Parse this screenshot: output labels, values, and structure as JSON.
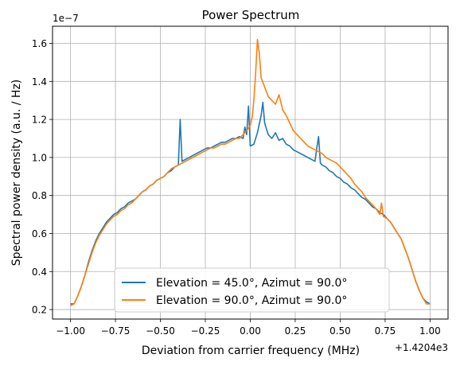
{
  "chart_data": {
    "type": "line",
    "title": "Power Spectrum",
    "xlabel": "Deviation from carrier frequency (MHz)",
    "ylabel": "Spectral power density (a.u. / Hz)",
    "x_offset_label": "+1.4204e3",
    "y_scale_label": "1e−7",
    "xlim": [
      -1.1,
      1.1
    ],
    "ylim": [
      0.15,
      1.69
    ],
    "x_ticks": [
      -1.0,
      -0.75,
      -0.5,
      -0.25,
      0.0,
      0.25,
      0.5,
      0.75,
      1.0
    ],
    "x_tick_labels": [
      "−1.00",
      "−0.75",
      "−0.50",
      "−0.25",
      "0.00",
      "0.25",
      "0.50",
      "0.75",
      "1.00"
    ],
    "y_ticks": [
      0.2,
      0.4,
      0.6,
      0.8,
      1.0,
      1.2,
      1.4,
      1.6
    ],
    "y_tick_labels": [
      "0.2",
      "0.4",
      "0.6",
      "0.8",
      "1.0",
      "1.2",
      "1.4",
      "1.6"
    ],
    "grid": true,
    "legend_position": "lower-center",
    "series": [
      {
        "name": "Elevation = 45.0°, Azimut = 90.0°",
        "color": "#1f77b4",
        "points": [
          [
            -1.0,
            0.23
          ],
          [
            -0.98,
            0.23
          ],
          [
            -0.96,
            0.27
          ],
          [
            -0.94,
            0.32
          ],
          [
            -0.92,
            0.38
          ],
          [
            -0.9,
            0.45
          ],
          [
            -0.88,
            0.51
          ],
          [
            -0.86,
            0.56
          ],
          [
            -0.84,
            0.6
          ],
          [
            -0.82,
            0.63
          ],
          [
            -0.8,
            0.66
          ],
          [
            -0.78,
            0.68
          ],
          [
            -0.76,
            0.7
          ],
          [
            -0.74,
            0.71
          ],
          [
            -0.72,
            0.73
          ],
          [
            -0.7,
            0.74
          ],
          [
            -0.68,
            0.76
          ],
          [
            -0.66,
            0.77
          ],
          [
            -0.64,
            0.78
          ],
          [
            -0.62,
            0.8
          ],
          [
            -0.6,
            0.82
          ],
          [
            -0.58,
            0.83
          ],
          [
            -0.56,
            0.85
          ],
          [
            -0.54,
            0.86
          ],
          [
            -0.52,
            0.88
          ],
          [
            -0.5,
            0.89
          ],
          [
            -0.48,
            0.9
          ],
          [
            -0.46,
            0.92
          ],
          [
            -0.44,
            0.93
          ],
          [
            -0.42,
            0.95
          ],
          [
            -0.4,
            0.96
          ],
          [
            -0.39,
            1.2
          ],
          [
            -0.38,
            0.98
          ],
          [
            -0.36,
            0.99
          ],
          [
            -0.34,
            1.0
          ],
          [
            -0.32,
            1.01
          ],
          [
            -0.3,
            1.02
          ],
          [
            -0.28,
            1.03
          ],
          [
            -0.26,
            1.04
          ],
          [
            -0.24,
            1.05
          ],
          [
            -0.22,
            1.05
          ],
          [
            -0.2,
            1.06
          ],
          [
            -0.18,
            1.07
          ],
          [
            -0.16,
            1.08
          ],
          [
            -0.14,
            1.08
          ],
          [
            -0.12,
            1.09
          ],
          [
            -0.1,
            1.1
          ],
          [
            -0.08,
            1.1
          ],
          [
            -0.06,
            1.11
          ],
          [
            -0.04,
            1.1
          ],
          [
            -0.03,
            1.16
          ],
          [
            -0.02,
            1.12
          ],
          [
            -0.01,
            1.27
          ],
          [
            0.0,
            1.06
          ],
          [
            0.02,
            1.07
          ],
          [
            0.04,
            1.13
          ],
          [
            0.06,
            1.22
          ],
          [
            0.07,
            1.29
          ],
          [
            0.08,
            1.18
          ],
          [
            0.1,
            1.12
          ],
          [
            0.12,
            1.1
          ],
          [
            0.14,
            1.13
          ],
          [
            0.16,
            1.09
          ],
          [
            0.18,
            1.1
          ],
          [
            0.2,
            1.07
          ],
          [
            0.22,
            1.06
          ],
          [
            0.24,
            1.04
          ],
          [
            0.26,
            1.03
          ],
          [
            0.28,
            1.02
          ],
          [
            0.3,
            1.01
          ],
          [
            0.32,
            1.0
          ],
          [
            0.34,
            0.99
          ],
          [
            0.36,
            0.98
          ],
          [
            0.37,
            1.05
          ],
          [
            0.38,
            1.11
          ],
          [
            0.39,
            0.97
          ],
          [
            0.4,
            0.96
          ],
          [
            0.42,
            0.95
          ],
          [
            0.44,
            0.93
          ],
          [
            0.46,
            0.92
          ],
          [
            0.48,
            0.9
          ],
          [
            0.5,
            0.89
          ],
          [
            0.52,
            0.87
          ],
          [
            0.54,
            0.86
          ],
          [
            0.56,
            0.84
          ],
          [
            0.58,
            0.83
          ],
          [
            0.6,
            0.81
          ],
          [
            0.62,
            0.79
          ],
          [
            0.64,
            0.78
          ],
          [
            0.66,
            0.76
          ],
          [
            0.68,
            0.74
          ],
          [
            0.7,
            0.73
          ],
          [
            0.72,
            0.71
          ],
          [
            0.74,
            0.7
          ],
          [
            0.76,
            0.68
          ],
          [
            0.78,
            0.66
          ],
          [
            0.8,
            0.63
          ],
          [
            0.82,
            0.6
          ],
          [
            0.84,
            0.57
          ],
          [
            0.86,
            0.52
          ],
          [
            0.88,
            0.47
          ],
          [
            0.9,
            0.41
          ],
          [
            0.92,
            0.35
          ],
          [
            0.94,
            0.3
          ],
          [
            0.96,
            0.26
          ],
          [
            0.98,
            0.24
          ],
          [
            1.0,
            0.23
          ]
        ]
      },
      {
        "name": "Elevation = 90.0°, Azimut = 90.0°",
        "color": "#ff7f0e",
        "points": [
          [
            -1.0,
            0.22
          ],
          [
            -0.98,
            0.23
          ],
          [
            -0.96,
            0.27
          ],
          [
            -0.94,
            0.32
          ],
          [
            -0.92,
            0.38
          ],
          [
            -0.9,
            0.44
          ],
          [
            -0.88,
            0.5
          ],
          [
            -0.86,
            0.55
          ],
          [
            -0.84,
            0.59
          ],
          [
            -0.82,
            0.62
          ],
          [
            -0.8,
            0.65
          ],
          [
            -0.78,
            0.67
          ],
          [
            -0.76,
            0.69
          ],
          [
            -0.74,
            0.7
          ],
          [
            -0.72,
            0.72
          ],
          [
            -0.7,
            0.73
          ],
          [
            -0.68,
            0.75
          ],
          [
            -0.66,
            0.76
          ],
          [
            -0.64,
            0.78
          ],
          [
            -0.62,
            0.8
          ],
          [
            -0.6,
            0.82
          ],
          [
            -0.58,
            0.83
          ],
          [
            -0.56,
            0.85
          ],
          [
            -0.54,
            0.86
          ],
          [
            -0.52,
            0.88
          ],
          [
            -0.5,
            0.89
          ],
          [
            -0.48,
            0.9
          ],
          [
            -0.46,
            0.92
          ],
          [
            -0.44,
            0.94
          ],
          [
            -0.42,
            0.95
          ],
          [
            -0.4,
            0.96
          ],
          [
            -0.38,
            0.97
          ],
          [
            -0.36,
            0.98
          ],
          [
            -0.34,
            0.99
          ],
          [
            -0.32,
            1.0
          ],
          [
            -0.3,
            1.01
          ],
          [
            -0.28,
            1.02
          ],
          [
            -0.26,
            1.03
          ],
          [
            -0.24,
            1.04
          ],
          [
            -0.22,
            1.05
          ],
          [
            -0.2,
            1.05
          ],
          [
            -0.18,
            1.06
          ],
          [
            -0.16,
            1.07
          ],
          [
            -0.14,
            1.07
          ],
          [
            -0.12,
            1.08
          ],
          [
            -0.1,
            1.09
          ],
          [
            -0.08,
            1.1
          ],
          [
            -0.06,
            1.1
          ],
          [
            -0.04,
            1.12
          ],
          [
            -0.02,
            1.14
          ],
          [
            0.0,
            1.17
          ],
          [
            0.01,
            1.21
          ],
          [
            0.02,
            1.3
          ],
          [
            0.03,
            1.45
          ],
          [
            0.04,
            1.62
          ],
          [
            0.05,
            1.55
          ],
          [
            0.06,
            1.42
          ],
          [
            0.08,
            1.37
          ],
          [
            0.1,
            1.32
          ],
          [
            0.12,
            1.3
          ],
          [
            0.14,
            1.28
          ],
          [
            0.16,
            1.33
          ],
          [
            0.18,
            1.25
          ],
          [
            0.2,
            1.22
          ],
          [
            0.22,
            1.18
          ],
          [
            0.24,
            1.14
          ],
          [
            0.26,
            1.12
          ],
          [
            0.28,
            1.1
          ],
          [
            0.3,
            1.08
          ],
          [
            0.32,
            1.06
          ],
          [
            0.34,
            1.05
          ],
          [
            0.36,
            1.04
          ],
          [
            0.38,
            1.03
          ],
          [
            0.4,
            1.02
          ],
          [
            0.42,
            1.0
          ],
          [
            0.44,
            0.99
          ],
          [
            0.46,
            0.98
          ],
          [
            0.48,
            0.97
          ],
          [
            0.5,
            0.95
          ],
          [
            0.52,
            0.93
          ],
          [
            0.54,
            0.91
          ],
          [
            0.56,
            0.89
          ],
          [
            0.58,
            0.86
          ],
          [
            0.6,
            0.84
          ],
          [
            0.62,
            0.82
          ],
          [
            0.64,
            0.79
          ],
          [
            0.66,
            0.77
          ],
          [
            0.68,
            0.75
          ],
          [
            0.7,
            0.73
          ],
          [
            0.72,
            0.7
          ],
          [
            0.73,
            0.76
          ],
          [
            0.74,
            0.69
          ],
          [
            0.76,
            0.68
          ],
          [
            0.78,
            0.66
          ],
          [
            0.8,
            0.63
          ],
          [
            0.82,
            0.6
          ],
          [
            0.84,
            0.57
          ],
          [
            0.86,
            0.52
          ],
          [
            0.88,
            0.47
          ],
          [
            0.9,
            0.41
          ],
          [
            0.92,
            0.35
          ],
          [
            0.94,
            0.3
          ],
          [
            0.96,
            0.26
          ],
          [
            0.98,
            0.23
          ],
          [
            1.0,
            0.23
          ]
        ]
      }
    ]
  }
}
